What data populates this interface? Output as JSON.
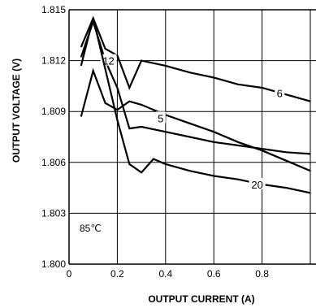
{
  "chart_data": {
    "type": "line",
    "xlabel": "OUTPUT CURRENT (A)",
    "ylabel": "OUTPUT VOLTAGE (V)",
    "xlim": [
      0,
      1.0
    ],
    "ylim": [
      1.8,
      1.815
    ],
    "x_ticks": [
      "0",
      "0.2",
      "0.4",
      "0.6",
      "0.8"
    ],
    "y_ticks": [
      "1.800",
      "1.803",
      "1.806",
      "1.809",
      "1.812",
      "1.815"
    ],
    "grid": true,
    "annotation": "85℃",
    "series": [
      {
        "name": "6",
        "x": [
          0.05,
          0.1,
          0.15,
          0.2,
          0.25,
          0.3,
          0.4,
          0.5,
          0.6,
          0.7,
          0.8,
          0.9,
          1.0
        ],
        "y": [
          1.8128,
          1.8145,
          1.8127,
          1.8123,
          1.8104,
          1.812,
          1.8117,
          1.8113,
          1.811,
          1.8106,
          1.8104,
          1.81,
          1.8096
        ]
      },
      {
        "name": "5",
        "x": [
          0.05,
          0.1,
          0.15,
          0.2,
          0.25,
          0.3,
          0.4,
          0.5,
          0.6,
          0.7,
          0.8,
          0.9,
          1.0
        ],
        "y": [
          1.8087,
          1.8114,
          1.8095,
          1.8091,
          1.8096,
          1.8094,
          1.8088,
          1.8083,
          1.8078,
          1.8072,
          1.8067,
          1.8061,
          1.8055
        ]
      },
      {
        "name": "12",
        "x": [
          0.05,
          0.1,
          0.15,
          0.2,
          0.25,
          0.3,
          0.4,
          0.5,
          0.6,
          0.7,
          0.8,
          0.9,
          1.0
        ],
        "y": [
          1.8122,
          1.8143,
          1.812,
          1.8104,
          1.808,
          1.8081,
          1.8078,
          1.8075,
          1.8072,
          1.807,
          1.8068,
          1.8066,
          1.8065
        ]
      },
      {
        "name": "20",
        "x": [
          0.05,
          0.1,
          0.15,
          0.2,
          0.25,
          0.3,
          0.35,
          0.4,
          0.5,
          0.6,
          0.7,
          0.8,
          0.9,
          1.0
        ],
        "y": [
          1.8117,
          1.8145,
          1.8115,
          1.8085,
          1.8059,
          1.8054,
          1.8062,
          1.8059,
          1.8055,
          1.8052,
          1.805,
          1.8047,
          1.8045,
          1.8042
        ]
      }
    ]
  },
  "colors": {
    "line": "#000000",
    "grid": "#000000",
    "background": "#ffffff"
  }
}
